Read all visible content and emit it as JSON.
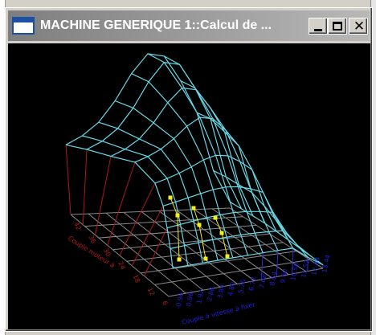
{
  "window": {
    "title": "MACHINE GENERIQUE 1::Calcul de ...",
    "minimize_glyph": "_",
    "close_glyph": "✕"
  },
  "plot": {
    "left_axis_label": "Couple moteur à",
    "right_axis_label": "Couple à vitesse à fixer",
    "left_ticks": [
      "42",
      "36",
      "30",
      "24",
      "18",
      "12",
      "6"
    ],
    "right_ticks": [
      "-0.96",
      "0.96",
      "1.92",
      "2.88",
      "3.84",
      "4.80",
      "5.76",
      "6.72",
      "7.68",
      "8.64",
      "9.60",
      "10.56",
      "11.52",
      "12.48",
      "13.44"
    ],
    "colors": {
      "surface": "#67d8e6",
      "markers": "#f2ee1f",
      "floor_grid": "#8a8a8a",
      "verticals": "#b01818",
      "left_labels": "#b81a1a",
      "right_labels": "#1f1fe0"
    }
  }
}
